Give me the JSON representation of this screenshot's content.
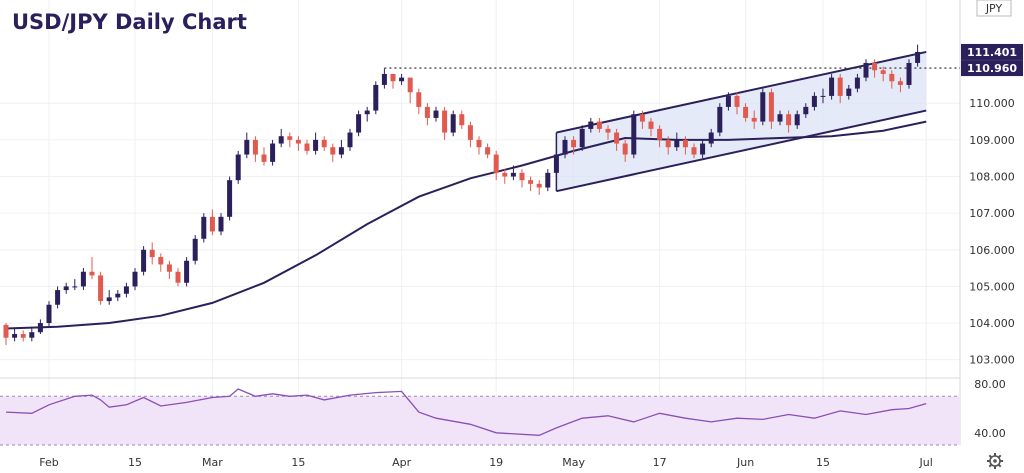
{
  "chart_data": {
    "type": "candlestick",
    "title": "USD/JPY Daily Chart",
    "unit": "JPY",
    "price_ylim": [
      102.5,
      112.6
    ],
    "price_ticks": [
      "103.000",
      "104.000",
      "105.000",
      "106.000",
      "107.000",
      "108.000",
      "109.000",
      "110.000"
    ],
    "price_labels": {
      "current": "111.401",
      "reference": "110.960"
    },
    "rsi_ylim": [
      30,
      85
    ],
    "rsi_ticks": [
      "40.00",
      "80.00"
    ],
    "rsi_band": [
      30,
      70
    ],
    "x_ticks": [
      {
        "i": 5,
        "label": "Feb"
      },
      {
        "i": 15,
        "label": "15"
      },
      {
        "i": 24,
        "label": "Mar"
      },
      {
        "i": 34,
        "label": "15"
      },
      {
        "i": 46,
        "label": "Apr"
      },
      {
        "i": 57,
        "label": "19"
      },
      {
        "i": 66,
        "label": "May"
      },
      {
        "i": 76,
        "label": "17"
      },
      {
        "i": 86,
        "label": "Jun"
      },
      {
        "i": 95,
        "label": "15"
      },
      {
        "i": 107,
        "label": "Jul"
      }
    ],
    "candles": [
      [
        103.95,
        103.6,
        104.0,
        103.4
      ],
      [
        103.6,
        103.7,
        103.85,
        103.5
      ],
      [
        103.7,
        103.6,
        103.8,
        103.5
      ],
      [
        103.6,
        103.75,
        103.9,
        103.5
      ],
      [
        103.75,
        104.0,
        104.1,
        103.7
      ],
      [
        104.0,
        104.5,
        104.6,
        103.9
      ],
      [
        104.5,
        104.9,
        105.0,
        104.4
      ],
      [
        104.9,
        105.0,
        105.1,
        104.8
      ],
      [
        105.0,
        105.0,
        105.2,
        104.9
      ],
      [
        105.0,
        105.4,
        105.5,
        104.9
      ],
      [
        105.4,
        105.3,
        105.8,
        105.2
      ],
      [
        105.3,
        104.6,
        105.4,
        104.5
      ],
      [
        104.6,
        104.7,
        104.9,
        104.5
      ],
      [
        104.7,
        104.8,
        104.9,
        104.6
      ],
      [
        104.8,
        105.0,
        105.1,
        104.7
      ],
      [
        105.0,
        105.4,
        105.5,
        104.9
      ],
      [
        105.4,
        106.0,
        106.1,
        105.3
      ],
      [
        106.0,
        105.8,
        106.2,
        105.6
      ],
      [
        105.8,
        105.6,
        105.9,
        105.4
      ],
      [
        105.6,
        105.4,
        105.7,
        105.2
      ],
      [
        105.4,
        105.1,
        105.5,
        105.0
      ],
      [
        105.1,
        105.7,
        105.8,
        105.0
      ],
      [
        105.7,
        106.3,
        106.4,
        105.6
      ],
      [
        106.3,
        106.9,
        107.0,
        106.2
      ],
      [
        106.9,
        106.5,
        107.1,
        106.4
      ],
      [
        106.5,
        106.9,
        107.0,
        106.4
      ],
      [
        106.9,
        107.9,
        108.0,
        106.8
      ],
      [
        107.9,
        108.6,
        108.7,
        107.8
      ],
      [
        108.6,
        109.0,
        109.2,
        108.5
      ],
      [
        109.0,
        108.6,
        109.1,
        108.4
      ],
      [
        108.6,
        108.4,
        108.8,
        108.3
      ],
      [
        108.4,
        108.9,
        109.0,
        108.3
      ],
      [
        108.9,
        109.1,
        109.3,
        108.8
      ],
      [
        109.1,
        109.0,
        109.2,
        108.8
      ],
      [
        109.0,
        108.9,
        109.1,
        108.7
      ],
      [
        108.9,
        108.7,
        109.0,
        108.6
      ],
      [
        108.7,
        109.0,
        109.2,
        108.6
      ],
      [
        109.0,
        108.8,
        109.1,
        108.7
      ],
      [
        108.8,
        108.6,
        108.9,
        108.4
      ],
      [
        108.6,
        108.8,
        109.0,
        108.5
      ],
      [
        108.8,
        109.2,
        109.3,
        108.7
      ],
      [
        109.2,
        109.7,
        109.8,
        109.1
      ],
      [
        109.7,
        109.8,
        109.9,
        109.5
      ],
      [
        109.8,
        110.5,
        110.6,
        109.7
      ],
      [
        110.5,
        110.8,
        110.95,
        110.4
      ],
      [
        110.8,
        110.6,
        110.8,
        110.4
      ],
      [
        110.6,
        110.7,
        110.8,
        110.5
      ],
      [
        110.7,
        110.3,
        110.7,
        110.0
      ],
      [
        110.3,
        109.9,
        110.4,
        109.7
      ],
      [
        109.9,
        109.6,
        110.0,
        109.4
      ],
      [
        109.6,
        109.8,
        109.9,
        109.5
      ],
      [
        109.8,
        109.2,
        109.9,
        109.0
      ],
      [
        109.2,
        109.7,
        109.8,
        109.1
      ],
      [
        109.7,
        109.4,
        109.8,
        109.3
      ],
      [
        109.4,
        109.0,
        109.5,
        108.8
      ],
      [
        109.0,
        108.8,
        109.1,
        108.6
      ],
      [
        108.8,
        108.6,
        108.9,
        108.5
      ],
      [
        108.6,
        108.1,
        108.7,
        107.9
      ],
      [
        108.1,
        108.0,
        108.2,
        107.8
      ],
      [
        108.0,
        108.1,
        108.3,
        107.9
      ],
      [
        108.1,
        107.9,
        108.2,
        107.7
      ],
      [
        107.9,
        107.8,
        108.0,
        107.6
      ],
      [
        107.8,
        107.7,
        107.9,
        107.5
      ],
      [
        107.7,
        108.1,
        108.2,
        107.6
      ],
      [
        108.1,
        108.6,
        108.7,
        108.0
      ],
      [
        108.6,
        109.0,
        109.1,
        108.5
      ],
      [
        109.0,
        108.8,
        109.1,
        108.6
      ],
      [
        108.8,
        109.3,
        109.4,
        108.7
      ],
      [
        109.3,
        109.5,
        109.6,
        109.2
      ],
      [
        109.5,
        109.3,
        109.6,
        109.2
      ],
      [
        109.3,
        109.2,
        109.4,
        109.0
      ],
      [
        109.2,
        108.9,
        109.3,
        108.7
      ],
      [
        108.9,
        108.6,
        109.0,
        108.4
      ],
      [
        108.6,
        109.7,
        109.8,
        108.5
      ],
      [
        109.7,
        109.5,
        109.8,
        109.3
      ],
      [
        109.5,
        109.3,
        109.6,
        109.1
      ],
      [
        109.3,
        109.0,
        109.4,
        108.8
      ],
      [
        109.0,
        108.8,
        109.1,
        108.6
      ],
      [
        108.8,
        109.0,
        109.2,
        108.7
      ],
      [
        109.0,
        108.8,
        109.1,
        108.6
      ],
      [
        108.8,
        108.6,
        108.9,
        108.5
      ],
      [
        108.6,
        108.9,
        109.0,
        108.5
      ],
      [
        108.9,
        109.2,
        109.3,
        108.8
      ],
      [
        109.2,
        109.9,
        110.0,
        109.1
      ],
      [
        109.9,
        110.2,
        110.3,
        109.8
      ],
      [
        110.2,
        109.9,
        110.3,
        109.7
      ],
      [
        109.9,
        109.6,
        110.0,
        109.5
      ],
      [
        109.6,
        109.5,
        109.8,
        109.3
      ],
      [
        109.5,
        110.3,
        110.4,
        109.4
      ],
      [
        110.3,
        109.5,
        110.4,
        109.3
      ],
      [
        109.5,
        109.7,
        109.8,
        109.4
      ],
      [
        109.7,
        109.4,
        109.8,
        109.2
      ],
      [
        109.4,
        109.7,
        109.8,
        109.3
      ],
      [
        109.7,
        109.9,
        110.0,
        109.6
      ],
      [
        109.9,
        110.2,
        110.3,
        109.8
      ],
      [
        110.2,
        110.2,
        110.4,
        110.0
      ],
      [
        110.2,
        110.7,
        110.8,
        110.1
      ],
      [
        110.7,
        110.2,
        110.8,
        110.0
      ],
      [
        110.2,
        110.4,
        110.5,
        110.1
      ],
      [
        110.4,
        110.7,
        110.8,
        110.3
      ],
      [
        110.7,
        111.1,
        111.2,
        110.6
      ],
      [
        111.1,
        110.9,
        111.2,
        110.7
      ],
      [
        110.9,
        110.8,
        111.0,
        110.6
      ],
      [
        110.8,
        110.6,
        110.9,
        110.4
      ],
      [
        110.6,
        110.5,
        110.7,
        110.3
      ],
      [
        110.5,
        111.1,
        111.2,
        110.4
      ],
      [
        111.1,
        111.4,
        111.6,
        111.0
      ]
    ],
    "moving_average": [
      [
        0,
        103.85
      ],
      [
        6,
        103.9
      ],
      [
        12,
        104.0
      ],
      [
        18,
        104.2
      ],
      [
        24,
        104.55
      ],
      [
        30,
        105.1
      ],
      [
        36,
        105.85
      ],
      [
        42,
        106.7
      ],
      [
        48,
        107.45
      ],
      [
        54,
        107.95
      ],
      [
        60,
        108.3
      ],
      [
        66,
        108.7
      ],
      [
        72,
        109.05
      ],
      [
        78,
        109.0
      ],
      [
        84,
        109.0
      ],
      [
        90,
        109.05
      ],
      [
        96,
        109.1
      ],
      [
        102,
        109.25
      ],
      [
        107,
        109.5
      ]
    ],
    "channel": {
      "upper": [
        [
          64,
          109.2
        ],
        [
          107,
          111.4
        ]
      ],
      "lower": [
        [
          64,
          107.6
        ],
        [
          107,
          109.8
        ]
      ]
    },
    "reference_line": 110.96,
    "rsi": [
      [
        0,
        57
      ],
      [
        3,
        56
      ],
      [
        5,
        63
      ],
      [
        8,
        70
      ],
      [
        10,
        71
      ],
      [
        11,
        67
      ],
      [
        12,
        61
      ],
      [
        14,
        63
      ],
      [
        16,
        69
      ],
      [
        18,
        62
      ],
      [
        21,
        65
      ],
      [
        24,
        69
      ],
      [
        26,
        70
      ],
      [
        27,
        76
      ],
      [
        29,
        70
      ],
      [
        31,
        72
      ],
      [
        33,
        70
      ],
      [
        35,
        71
      ],
      [
        37,
        67
      ],
      [
        40,
        71
      ],
      [
        43,
        73
      ],
      [
        46,
        74
      ],
      [
        48,
        57
      ],
      [
        50,
        52
      ],
      [
        54,
        47
      ],
      [
        57,
        40
      ],
      [
        62,
        38
      ],
      [
        64,
        44
      ],
      [
        67,
        52
      ],
      [
        70,
        54
      ],
      [
        73,
        49
      ],
      [
        76,
        56
      ],
      [
        79,
        52
      ],
      [
        82,
        49
      ],
      [
        85,
        52
      ],
      [
        88,
        51
      ],
      [
        91,
        55
      ],
      [
        94,
        52
      ],
      [
        97,
        58
      ],
      [
        100,
        55
      ],
      [
        103,
        59
      ],
      [
        105,
        60
      ],
      [
        107,
        64
      ]
    ]
  },
  "toolbar": {
    "settings_icon": "gear-icon"
  }
}
